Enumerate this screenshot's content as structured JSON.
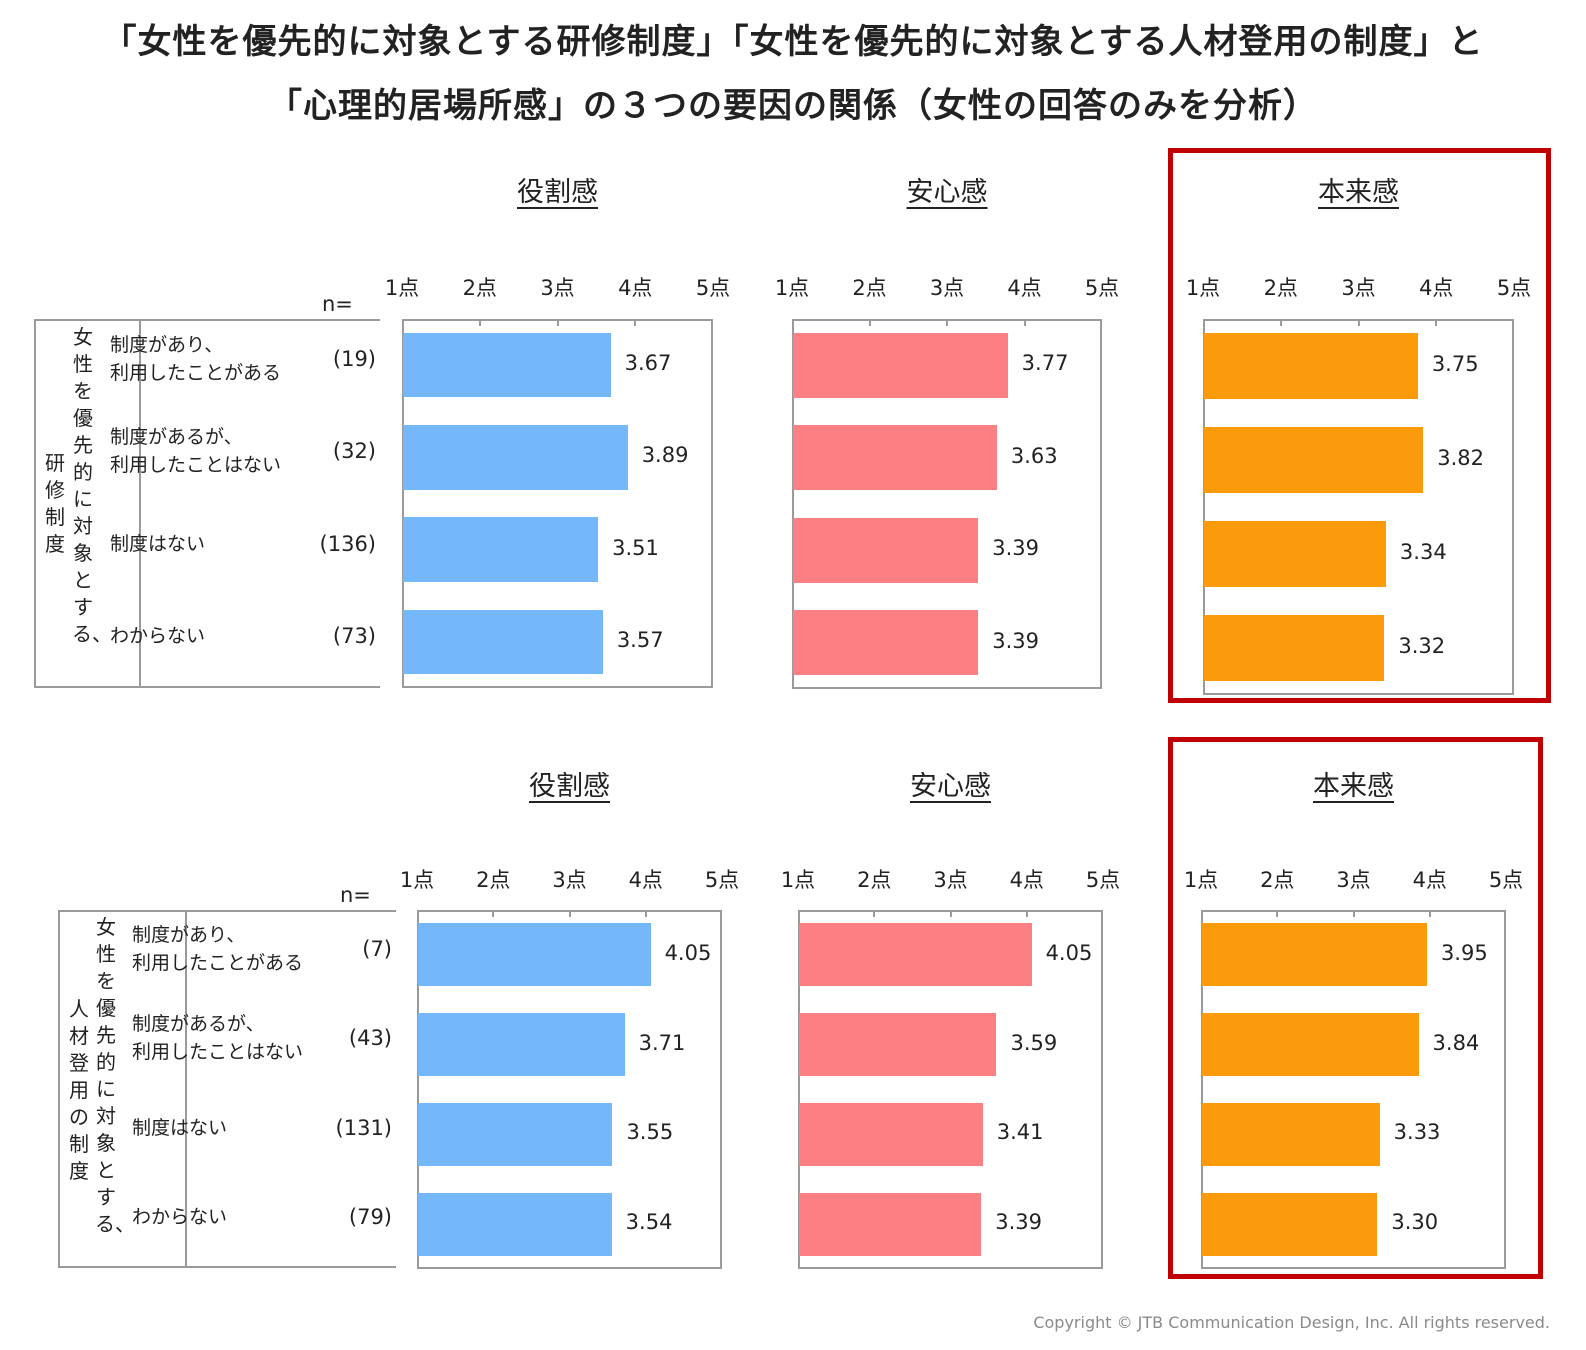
{
  "title": {
    "line1": "「女性を優先的に対象とする研修制度」「女性を優先的に対象とする人材登用の制度」と",
    "line2": "「心理的居場所感」の３つの要因の関係（女性の回答のみを分析）"
  },
  "copyright": "Copyright © JTB Communication Design, Inc. All rights reserved.",
  "n_header": "n=",
  "colors": {
    "role": "#74b7fb",
    "security": "#fb7f83",
    "authenticity": "#fb9a0a",
    "highlight": "#c00000"
  },
  "chart_data": [
    {
      "type": "bar",
      "group_label": "女性を優先的に対象とする、研修制度",
      "group_label_col1": "研修制度",
      "group_label_col2": "女性を優先的に対象とする、",
      "categories": [
        "制度があり、\n利用したことがある",
        "制度があるが、\n利用したことはない",
        "制度はない",
        "わからない"
      ],
      "n": [
        "(19)",
        "(32)",
        "(136)",
        "(73)"
      ],
      "xlim": [
        1,
        5
      ],
      "ticks": [
        "1点",
        "2点",
        "3点",
        "4点",
        "5点"
      ],
      "panels": [
        {
          "title": "役割感",
          "color": "#74b7fb",
          "values": [
            3.67,
            3.89,
            3.51,
            3.57
          ],
          "labels": [
            "3.67",
            "3.89",
            "3.51",
            "3.57"
          ],
          "highlighted": false
        },
        {
          "title": "安心感",
          "color": "#fb7f83",
          "values": [
            3.77,
            3.63,
            3.39,
            3.39
          ],
          "labels": [
            "3.77",
            "3.63",
            "3.39",
            "3.39"
          ],
          "highlighted": false
        },
        {
          "title": "本来感",
          "color": "#fb9a0a",
          "values": [
            3.75,
            3.82,
            3.34,
            3.32
          ],
          "labels": [
            "3.75",
            "3.82",
            "3.34",
            "3.32"
          ],
          "highlighted": true
        }
      ]
    },
    {
      "type": "bar",
      "group_label": "女性を優先的に対象とする、人材登用の制度",
      "group_label_col1": "人材登用の制度",
      "group_label_col2": "女性を優先的に対象とする、",
      "categories": [
        "制度があり、\n利用したことがある",
        "制度があるが、\n利用したことはない",
        "制度はない",
        "わからない"
      ],
      "n": [
        "(7)",
        "(43)",
        "(131)",
        "(79)"
      ],
      "xlim": [
        1,
        5
      ],
      "ticks": [
        "1点",
        "2点",
        "3点",
        "4点",
        "5点"
      ],
      "panels": [
        {
          "title": "役割感",
          "color": "#74b7fb",
          "values": [
            4.05,
            3.71,
            3.55,
            3.54
          ],
          "labels": [
            "4.05",
            "3.71",
            "3.55",
            "3.54"
          ],
          "highlighted": false
        },
        {
          "title": "安心感",
          "color": "#fb7f83",
          "values": [
            4.05,
            3.59,
            3.41,
            3.39
          ],
          "labels": [
            "4.05",
            "3.59",
            "3.41",
            "3.39"
          ],
          "highlighted": false
        },
        {
          "title": "本来感",
          "color": "#fb9a0a",
          "values": [
            3.95,
            3.84,
            3.33,
            3.3
          ],
          "labels": [
            "3.95",
            "3.84",
            "3.33",
            "3.30"
          ],
          "highlighted": true
        }
      ]
    }
  ]
}
